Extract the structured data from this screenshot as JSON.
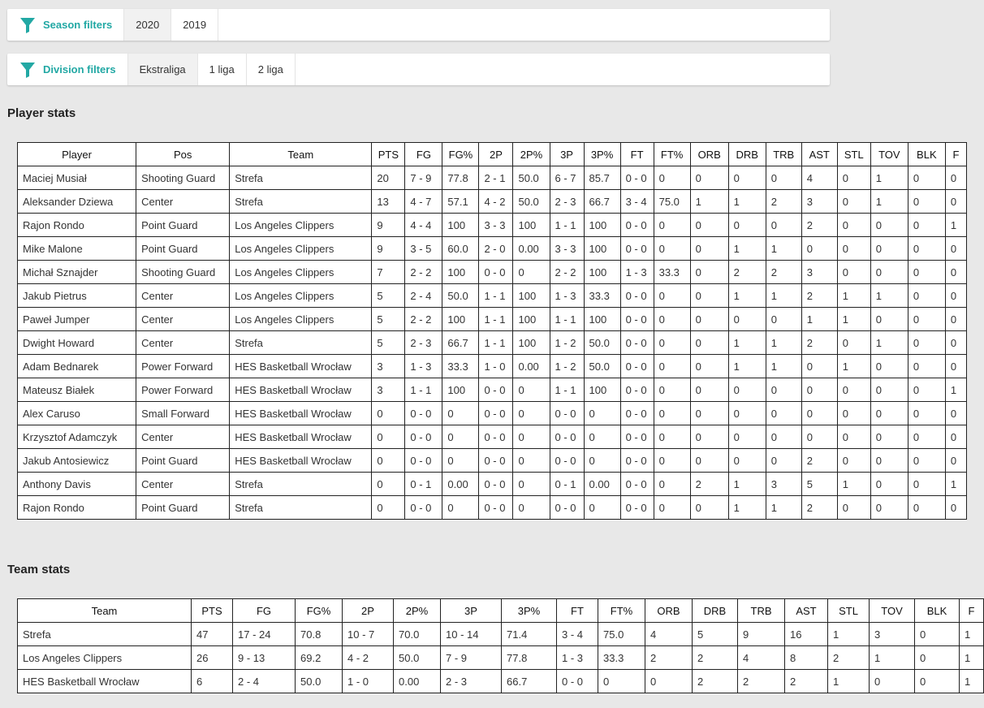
{
  "season_filters": {
    "label": "Season filters",
    "icon": "filter-icon",
    "options": [
      "2020",
      "2019"
    ],
    "selected": "2020"
  },
  "division_filters": {
    "label": "Division filters",
    "icon": "filter-icon",
    "options": [
      "Ekstraliga",
      "1 liga",
      "2 liga"
    ],
    "selected": "Ekstraliga"
  },
  "player_stats": {
    "title": "Player stats",
    "headers": [
      "Player",
      "Pos",
      "Team",
      "PTS",
      "FG",
      "FG%",
      "2P",
      "2P%",
      "3P",
      "3P%",
      "FT",
      "FT%",
      "ORB",
      "DRB",
      "TRB",
      "AST",
      "STL",
      "TOV",
      "BLK",
      "F"
    ],
    "rows": [
      [
        "Maciej Musiał",
        "Shooting Guard",
        "Strefa",
        "20",
        "7 - 9",
        "77.8",
        "2 - 1",
        "50.0",
        "6 - 7",
        "85.7",
        "0 - 0",
        "0",
        "0",
        "0",
        "0",
        "4",
        "0",
        "1",
        "0",
        "0"
      ],
      [
        "Aleksander Dziewa",
        "Center",
        "Strefa",
        "13",
        "4 - 7",
        "57.1",
        "4 - 2",
        "50.0",
        "2 - 3",
        "66.7",
        "3 - 4",
        "75.0",
        "1",
        "1",
        "2",
        "3",
        "0",
        "1",
        "0",
        "0"
      ],
      [
        "Rajon Rondo",
        "Point Guard",
        "Los Angeles Clippers",
        "9",
        "4 - 4",
        "100",
        "3 - 3",
        "100",
        "1 - 1",
        "100",
        "0 - 0",
        "0",
        "0",
        "0",
        "0",
        "2",
        "0",
        "0",
        "0",
        "1"
      ],
      [
        "Mike Malone",
        "Point Guard",
        "Los Angeles Clippers",
        "9",
        "3 - 5",
        "60.0",
        "2 - 0",
        "0.00",
        "3 - 3",
        "100",
        "0 - 0",
        "0",
        "0",
        "1",
        "1",
        "0",
        "0",
        "0",
        "0",
        "0"
      ],
      [
        "Michał Sznajder",
        "Shooting Guard",
        "Los Angeles Clippers",
        "7",
        "2 - 2",
        "100",
        "0 - 0",
        "0",
        "2 - 2",
        "100",
        "1 - 3",
        "33.3",
        "0",
        "2",
        "2",
        "3",
        "0",
        "0",
        "0",
        "0"
      ],
      [
        "Jakub Pietrus",
        "Center",
        "Los Angeles Clippers",
        "5",
        "2 - 4",
        "50.0",
        "1 - 1",
        "100",
        "1 - 3",
        "33.3",
        "0 - 0",
        "0",
        "0",
        "1",
        "1",
        "2",
        "1",
        "1",
        "0",
        "0"
      ],
      [
        "Paweł Jumper",
        "Center",
        "Los Angeles Clippers",
        "5",
        "2 - 2",
        "100",
        "1 - 1",
        "100",
        "1 - 1",
        "100",
        "0 - 0",
        "0",
        "0",
        "0",
        "0",
        "1",
        "1",
        "0",
        "0",
        "0"
      ],
      [
        "Dwight Howard",
        "Center",
        "Strefa",
        "5",
        "2 - 3",
        "66.7",
        "1 - 1",
        "100",
        "1 - 2",
        "50.0",
        "0 - 0",
        "0",
        "0",
        "1",
        "1",
        "2",
        "0",
        "1",
        "0",
        "0"
      ],
      [
        "Adam Bednarek",
        "Power Forward",
        "HES Basketball Wrocław",
        "3",
        "1 - 3",
        "33.3",
        "1 - 0",
        "0.00",
        "1 - 2",
        "50.0",
        "0 - 0",
        "0",
        "0",
        "1",
        "1",
        "0",
        "1",
        "0",
        "0",
        "0"
      ],
      [
        "Mateusz Białek",
        "Power Forward",
        "HES Basketball Wrocław",
        "3",
        "1 - 1",
        "100",
        "0 - 0",
        "0",
        "1 - 1",
        "100",
        "0 - 0",
        "0",
        "0",
        "0",
        "0",
        "0",
        "0",
        "0",
        "0",
        "1"
      ],
      [
        "Alex Caruso",
        "Small Forward",
        "HES Basketball Wrocław",
        "0",
        "0 - 0",
        "0",
        "0 - 0",
        "0",
        "0 - 0",
        "0",
        "0 - 0",
        "0",
        "0",
        "0",
        "0",
        "0",
        "0",
        "0",
        "0",
        "0"
      ],
      [
        "Krzysztof Adamczyk",
        "Center",
        "HES Basketball Wrocław",
        "0",
        "0 - 0",
        "0",
        "0 - 0",
        "0",
        "0 - 0",
        "0",
        "0 - 0",
        "0",
        "0",
        "0",
        "0",
        "0",
        "0",
        "0",
        "0",
        "0"
      ],
      [
        "Jakub Antosiewicz",
        "Point Guard",
        "HES Basketball Wrocław",
        "0",
        "0 - 0",
        "0",
        "0 - 0",
        "0",
        "0 - 0",
        "0",
        "0 - 0",
        "0",
        "0",
        "0",
        "0",
        "2",
        "0",
        "0",
        "0",
        "0"
      ],
      [
        "Anthony Davis",
        "Center",
        "Strefa",
        "0",
        "0 - 1",
        "0.00",
        "0 - 0",
        "0",
        "0 - 1",
        "0.00",
        "0 - 0",
        "0",
        "2",
        "1",
        "3",
        "5",
        "1",
        "0",
        "0",
        "1"
      ],
      [
        "Rajon Rondo",
        "Point Guard",
        "Strefa",
        "0",
        "0 - 0",
        "0",
        "0 - 0",
        "0",
        "0 - 0",
        "0",
        "0 - 0",
        "0",
        "0",
        "1",
        "1",
        "2",
        "0",
        "0",
        "0",
        "0"
      ]
    ]
  },
  "team_stats": {
    "title": "Team stats",
    "headers": [
      "Team",
      "PTS",
      "FG",
      "FG%",
      "2P",
      "2P%",
      "3P",
      "3P%",
      "FT",
      "FT%",
      "ORB",
      "DRB",
      "TRB",
      "AST",
      "STL",
      "TOV",
      "BLK",
      "F"
    ],
    "rows": [
      [
        "Strefa",
        "47",
        "17 - 24",
        "70.8",
        "10 - 7",
        "70.0",
        "10 - 14",
        "71.4",
        "3 - 4",
        "75.0",
        "4",
        "5",
        "9",
        "16",
        "1",
        "3",
        "0",
        "1"
      ],
      [
        "Los Angeles Clippers",
        "26",
        "9 - 13",
        "69.2",
        "4 - 2",
        "50.0",
        "7 - 9",
        "77.8",
        "1 - 3",
        "33.3",
        "2",
        "2",
        "4",
        "8",
        "2",
        "1",
        "0",
        "1"
      ],
      [
        "HES Basketball Wrocław",
        "6",
        "2 - 4",
        "50.0",
        "1 - 0",
        "0.00",
        "2 - 3",
        "66.7",
        "0 - 0",
        "0",
        "0",
        "2",
        "2",
        "2",
        "1",
        "0",
        "0",
        "1"
      ]
    ]
  },
  "colors": {
    "accent": "#22a8a4",
    "page_bg": "#e8e8e8"
  }
}
